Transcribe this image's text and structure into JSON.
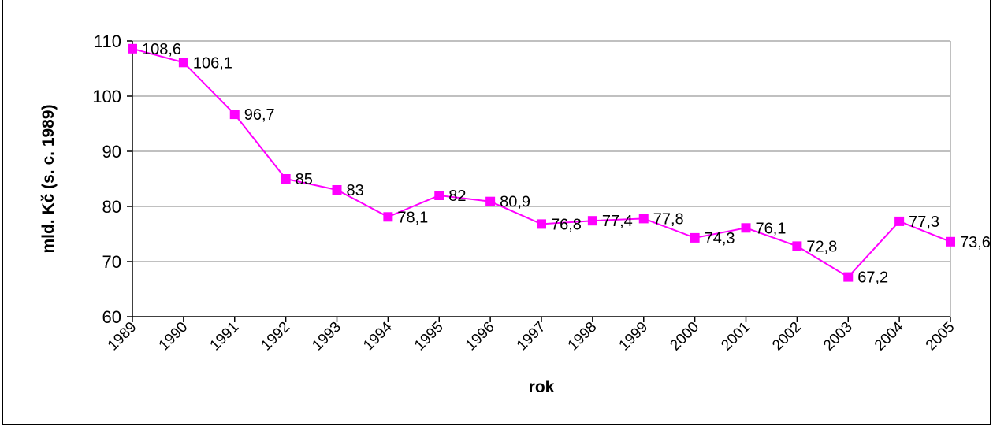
{
  "chart_data": {
    "type": "line",
    "xlabel": "rok",
    "ylabel": "mld. Kč (s. c. 1989)",
    "ylim": [
      60,
      110
    ],
    "yticks": [
      60,
      70,
      80,
      90,
      100,
      110
    ],
    "grid": true,
    "legend": "none",
    "line_color": "#FF00FF",
    "categories": [
      "1989",
      "1990",
      "1991",
      "1992",
      "1993",
      "1994",
      "1995",
      "1996",
      "1997",
      "1998",
      "1999",
      "2000",
      "2001",
      "2002",
      "2003",
      "2004",
      "2005"
    ],
    "series": [
      {
        "values": [
          108.6,
          106.1,
          96.7,
          85,
          83,
          78.1,
          82,
          80.9,
          76.8,
          77.4,
          77.8,
          74.3,
          76.1,
          72.8,
          67.2,
          77.3,
          73.6
        ],
        "data_labels": [
          "108,6",
          "106,1",
          "96,7",
          "85",
          "83",
          "78,1",
          "82",
          "80,9",
          "76,8",
          "77,4",
          "77,8",
          "74,3",
          "76,1",
          "72,8",
          "67,2",
          "77,3",
          "73,6"
        ]
      }
    ]
  }
}
